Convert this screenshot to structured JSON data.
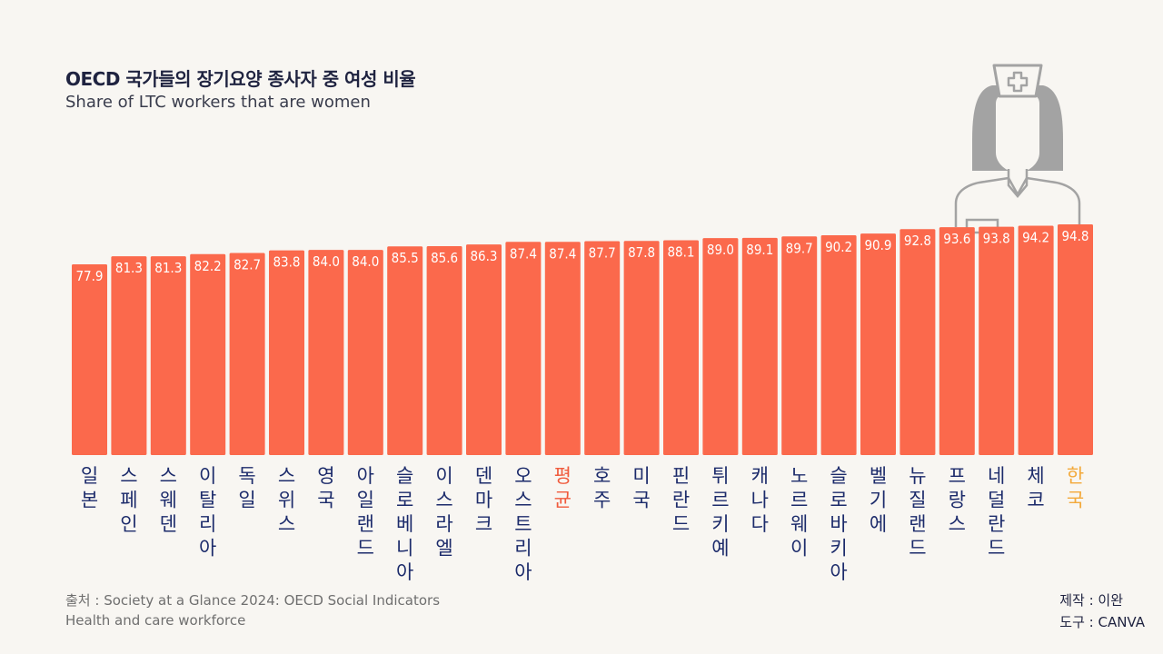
{
  "colors": {
    "bar": "#fb694c",
    "bar_label": "#ffffff",
    "country_label": "#1c2b6b",
    "average_label": "#f05a3c",
    "korea_label": "#f3a93b",
    "nurse_gray": "#a3a3a3"
  },
  "chart_data": {
    "type": "bar",
    "title": "OECD 국가들의 장기요양 종사자 중 여성 비율",
    "subtitle": "Share of LTC workers that are women",
    "xlabel": "",
    "ylabel": "",
    "ylim": [
      0,
      100
    ],
    "categories": [
      "일본",
      "스페인",
      "스웨덴",
      "이탈리아",
      "독일",
      "스위스",
      "영국",
      "아일랜드",
      "슬로베니아",
      "이스라엘",
      "덴마크",
      "오스트리아",
      "평균",
      "호주",
      "미국",
      "핀란드",
      "튀르키예",
      "캐나다",
      "노르웨이",
      "슬로바키아",
      "벨기에",
      "뉴질랜드",
      "프랑스",
      "네덜란드",
      "체코",
      "한국"
    ],
    "values": [
      77.9,
      81.3,
      81.3,
      82.2,
      82.7,
      83.8,
      84.0,
      84.0,
      85.5,
      85.6,
      86.3,
      87.4,
      87.4,
      87.7,
      87.8,
      88.1,
      89.0,
      89.1,
      89.7,
      90.2,
      90.9,
      92.8,
      93.6,
      93.8,
      94.2,
      94.8
    ],
    "value_labels": [
      "77.9",
      "81.3",
      "81.3",
      "82.2",
      "82.7",
      "83.8",
      "84.0",
      "84.0",
      "85.5",
      "85.6",
      "86.3",
      "87.4",
      "87.4",
      "87.7",
      "87.8",
      "88.1",
      "89.0",
      "89.1",
      "89.7",
      "90.2",
      "90.9",
      "92.8",
      "93.6",
      "93.8",
      "94.2",
      "94.8"
    ],
    "highlight_average": "평균",
    "highlight_korea": "한국"
  },
  "footer": {
    "source_line1": "출처 : Society at a Glance 2024: OECD Social Indicators",
    "source_line2": "Health and care workforce",
    "credit_maker": "제작 : 이완",
    "credit_tool": "도구 : CANVA"
  },
  "icons": {
    "nurse": "nurse-icon"
  }
}
